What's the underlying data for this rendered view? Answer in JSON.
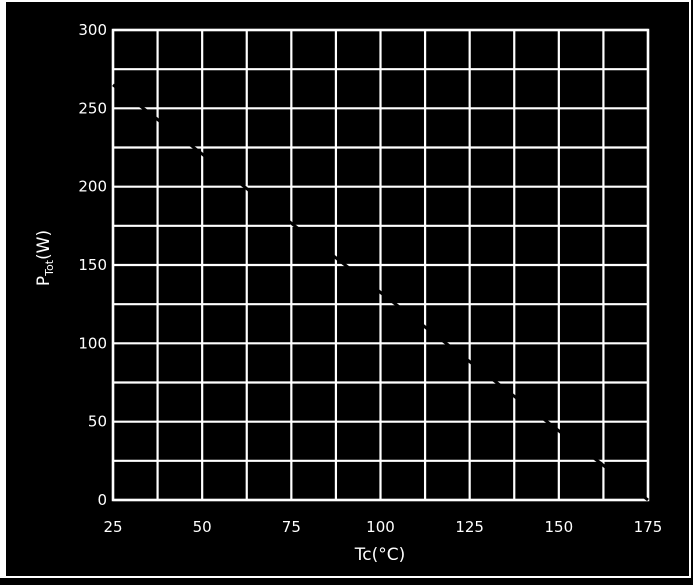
{
  "chart_data": {
    "type": "line",
    "title": "",
    "xlabel": "Tc(°C)",
    "ylabel_main": "P",
    "ylabel_sub": "Tot",
    "ylabel_unit": "(W)",
    "xlim": [
      25,
      175
    ],
    "ylim": [
      0,
      300
    ],
    "x_ticks": [
      25,
      50,
      75,
      100,
      125,
      150,
      175
    ],
    "y_ticks": [
      0,
      50,
      100,
      150,
      200,
      250,
      300
    ],
    "x_minor_step": 12.5,
    "y_minor_step": 25,
    "grid": true,
    "series": [
      {
        "x": [
          25,
          175
        ],
        "y": [
          265,
          0
        ]
      }
    ],
    "colors": {
      "background": "#000000",
      "grid": "#ffffff",
      "line": "#000000"
    }
  }
}
